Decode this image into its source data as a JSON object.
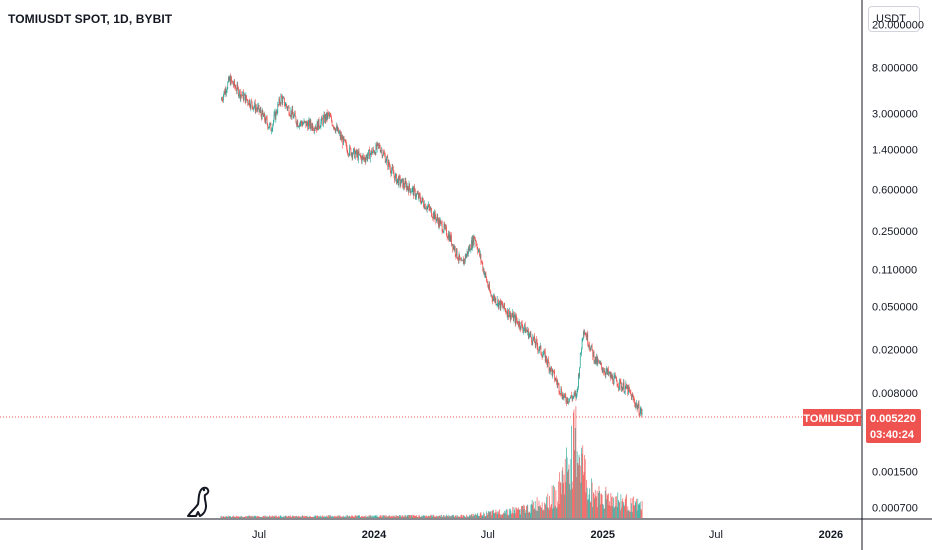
{
  "header": {
    "title": "TOMIUSDT SPOT, 1D, BYBIT"
  },
  "scale": {
    "unit_label": "USDT"
  },
  "price_label": {
    "symbol": "TOMIUSDT",
    "value": "0.005220",
    "countdown": "03:40:24",
    "color": "#ef5350"
  },
  "colors": {
    "up": "#26a69a",
    "down": "#ef5350",
    "axis_text": "#131722",
    "grid_border": "#131722"
  },
  "chart_data": {
    "type": "candlestick",
    "scale": "log",
    "ylim": [
      0.00055,
      26
    ],
    "y_ticks": [
      "20.000000",
      "8.000000",
      "3.000000",
      "1.400000",
      "0.600000",
      "0.250000",
      "0.110000",
      "0.050000",
      "0.020000",
      "0.008000",
      "0.001500",
      "0.000700"
    ],
    "x_ticks": [
      "Jul",
      "2024",
      "Jul",
      "2025",
      "Jul",
      "2026"
    ],
    "last_price": 0.00522,
    "series": [
      {
        "x": "2023-05-01",
        "close": 4.0
      },
      {
        "x": "2023-05-15",
        "close": 6.2
      },
      {
        "x": "2023-06-01",
        "close": 4.6
      },
      {
        "x": "2023-07-01",
        "close": 3.2
      },
      {
        "x": "2023-07-20",
        "close": 2.2
      },
      {
        "x": "2023-08-05",
        "close": 4.2
      },
      {
        "x": "2023-09-01",
        "close": 2.5
      },
      {
        "x": "2023-10-01",
        "close": 2.3
      },
      {
        "x": "2023-10-20",
        "close": 2.9
      },
      {
        "x": "2023-11-20",
        "close": 1.4
      },
      {
        "x": "2023-12-15",
        "close": 1.15
      },
      {
        "x": "2024-01-10",
        "close": 1.5
      },
      {
        "x": "2024-02-05",
        "close": 0.75
      },
      {
        "x": "2024-03-01",
        "close": 0.6
      },
      {
        "x": "2024-04-01",
        "close": 0.38
      },
      {
        "x": "2024-05-01",
        "close": 0.22
      },
      {
        "x": "2024-05-20",
        "close": 0.12
      },
      {
        "x": "2024-06-10",
        "close": 0.22
      },
      {
        "x": "2024-07-05",
        "close": 0.065
      },
      {
        "x": "2024-08-01",
        "close": 0.045
      },
      {
        "x": "2024-09-01",
        "close": 0.03
      },
      {
        "x": "2024-10-01",
        "close": 0.017
      },
      {
        "x": "2024-11-01",
        "close": 0.007
      },
      {
        "x": "2024-11-20",
        "close": 0.0075
      },
      {
        "x": "2024-12-01",
        "close": 0.032
      },
      {
        "x": "2024-12-20",
        "close": 0.016
      },
      {
        "x": "2025-01-15",
        "close": 0.011
      },
      {
        "x": "2025-02-10",
        "close": 0.0085
      },
      {
        "x": "2025-03-01",
        "close": 0.0055
      },
      {
        "x": "2025-03-05",
        "close": 0.00522
      }
    ],
    "volume": {
      "note": "relative volume, peak late Nov 2024",
      "points": [
        {
          "x": "2023-05-01",
          "value": 0.02
        },
        {
          "x": "2024-06-01",
          "value": 0.03
        },
        {
          "x": "2024-09-01",
          "value": 0.12
        },
        {
          "x": "2024-10-20",
          "value": 0.3
        },
        {
          "x": "2024-11-20",
          "value": 1.0
        },
        {
          "x": "2024-12-10",
          "value": 0.35
        },
        {
          "x": "2025-01-15",
          "value": 0.25
        },
        {
          "x": "2025-03-05",
          "value": 0.15
        }
      ]
    }
  }
}
